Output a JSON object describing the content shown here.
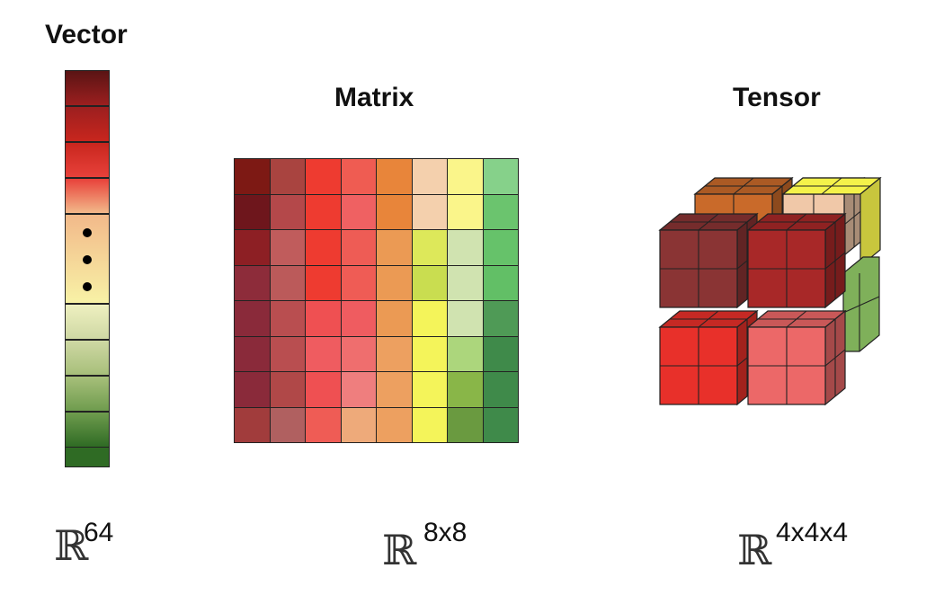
{
  "titles": {
    "vector": "Vector",
    "matrix": "Matrix",
    "tensor": "Tensor"
  },
  "labels": {
    "real_symbol": "ℝ",
    "vector_dim": "64",
    "matrix_dim": "8x8",
    "tensor_dim": "4x4x4"
  },
  "vector_colors": [
    "#5a1414",
    "#9c1f1f",
    "#c8261e",
    "#e8413a",
    "#f2b98a",
    "#f8f2a6",
    "#eef0c0",
    "#cfd8a4",
    "#a7bf7a",
    "#6f9c4e",
    "#2f6b24"
  ],
  "matrix_colors": [
    [
      "#7d1914",
      "#a94440",
      "#ee3b30",
      "#ef5c52",
      "#e8853a",
      "#f4d0ad",
      "#faf58a",
      "#86d18a"
    ],
    [
      "#6e161c",
      "#b4484a",
      "#ee3b30",
      "#ef6162",
      "#e8853a",
      "#f4d0ad",
      "#faf58a",
      "#6bc46e"
    ],
    [
      "#8d1f24",
      "#c05c5c",
      "#ee3b30",
      "#ee5c55",
      "#eb9a54",
      "#dde85a",
      "#d0e3b0",
      "#66c26a"
    ],
    [
      "#8d2c3a",
      "#bb5a5a",
      "#ee3b30",
      "#ef5c55",
      "#eb9a54",
      "#c9dd50",
      "#d0e3b0",
      "#62bf66"
    ],
    [
      "#8a2a3a",
      "#b94e50",
      "#ef5052",
      "#ef5c60",
      "#eb9a54",
      "#f4f45a",
      "#d0e3b0",
      "#4f9a56"
    ],
    [
      "#8a2a3a",
      "#b94e50",
      "#ef5c60",
      "#ef6e6e",
      "#eda060",
      "#f4f45a",
      "#acd67c",
      "#3f8a4a"
    ],
    [
      "#8a2a3a",
      "#b04848",
      "#ef5052",
      "#ef7e7e",
      "#eda060",
      "#f4f45a",
      "#89b648",
      "#3f8a4a"
    ],
    [
      "#a13c3c",
      "#b06060",
      "#ef5c55",
      "#eeaa7a",
      "#eda060",
      "#f4f45a",
      "#6a9a40",
      "#3f8a4a"
    ]
  ],
  "tensor_colors": {
    "back_top_left": "#c96a2a",
    "back_top_right": "#f4f24a",
    "back_mid_right": "#f0c8a8",
    "back_green": "#7fb05a",
    "front_top_left": "#8a3434",
    "front_top_right": "#a82828",
    "front_bottom_left": "#e8302a",
    "front_bottom_right": "#ec6868"
  }
}
